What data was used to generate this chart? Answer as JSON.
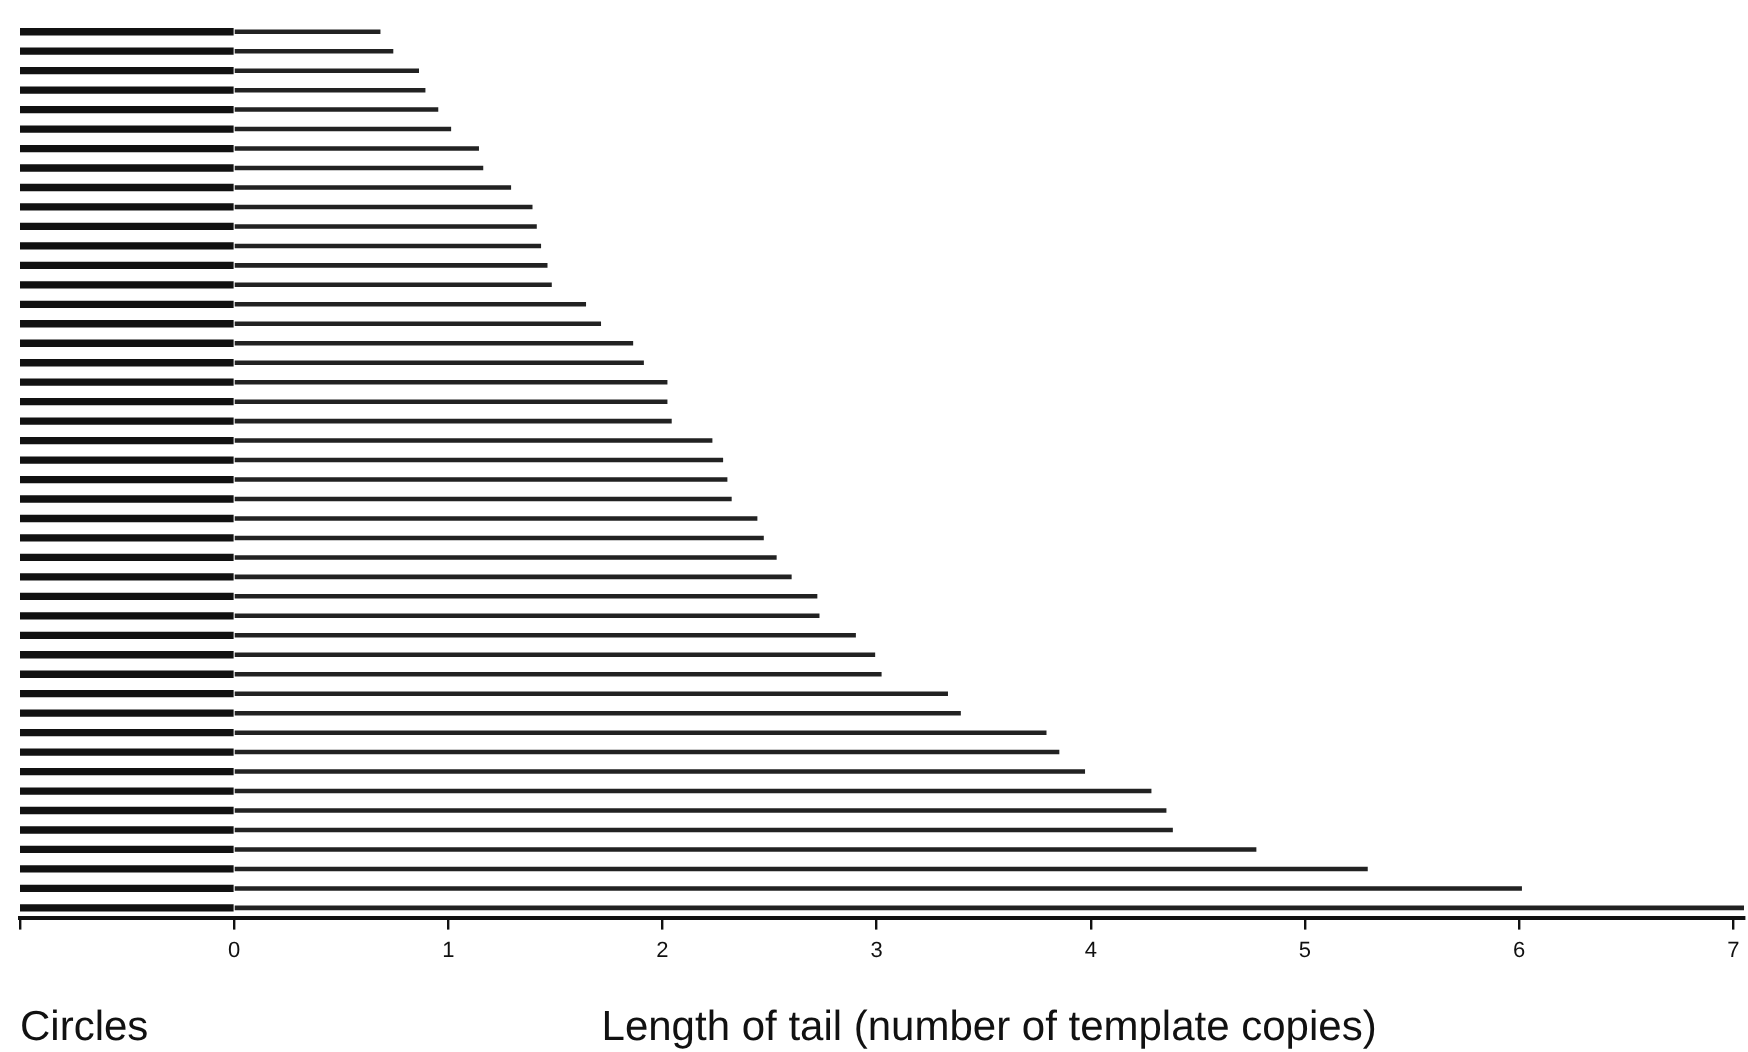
{
  "chart_data": {
    "type": "bar",
    "orientation": "horizontal",
    "stacked": true,
    "xlabel": "Length of tail (number of template copies)",
    "annotations": [
      "Circles"
    ],
    "categories": [
      null,
      null,
      null,
      null,
      null,
      null,
      null,
      null,
      null,
      null,
      null,
      null,
      null,
      null,
      null,
      null,
      null,
      null,
      null,
      null,
      null,
      null,
      null,
      null,
      null,
      null,
      null,
      null,
      null,
      null,
      null,
      null,
      null,
      null,
      null,
      null,
      null,
      null,
      null,
      null,
      null,
      null,
      null,
      null,
      null,
      null
    ],
    "series": [
      {
        "color": "#111111",
        "values": [
          -1,
          -1,
          -1,
          -1,
          -1,
          -1,
          -1,
          -1,
          -1,
          -1,
          -1,
          -1,
          -1,
          -1,
          -1,
          -1,
          -1,
          -1,
          -1,
          -1,
          -1,
          -1,
          -1,
          -1,
          -1,
          -1,
          -1,
          -1,
          -1,
          -1,
          -1,
          -1,
          -1,
          -1,
          -1,
          -1,
          -1,
          -1,
          -1,
          -1,
          -1,
          -1,
          -1,
          -1,
          -1,
          -1
        ]
      },
      {
        "color": "#222222",
        "values": [
          0.68,
          0.74,
          0.86,
          0.89,
          0.95,
          1.01,
          1.14,
          1.16,
          1.29,
          1.39,
          1.41,
          1.43,
          1.46,
          1.48,
          1.64,
          1.71,
          1.86,
          1.91,
          2.02,
          2.02,
          2.04,
          2.23,
          2.28,
          2.3,
          2.32,
          2.44,
          2.47,
          2.53,
          2.6,
          2.72,
          2.73,
          2.9,
          2.99,
          3.02,
          3.33,
          3.39,
          3.79,
          3.85,
          3.97,
          4.28,
          4.35,
          4.38,
          4.77,
          5.29,
          6.01,
          7.05
        ]
      }
    ],
    "xlim": [
      -1,
      7.05
    ],
    "xticks": [
      {
        "value": -1,
        "label": null
      },
      0,
      1,
      2,
      3,
      4,
      5,
      6,
      7
    ],
    "grid": false,
    "legend": false
  }
}
